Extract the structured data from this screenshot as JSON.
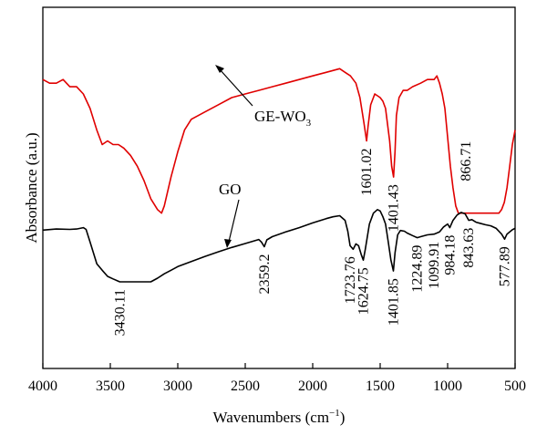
{
  "chart_data": {
    "type": "line",
    "title": "",
    "xlabel": "Wavenumbers (cm",
    "xlabel_sup": "−1",
    "xlabel_tail": ")",
    "ylabel": "Absorbance (a.u.)",
    "xlim": [
      4000,
      500
    ],
    "x_reversed": true,
    "y_ticks_shown": false,
    "grid": false,
    "x_tick_labels": [
      "4000",
      "3500",
      "3000",
      "2500",
      "2000",
      "1500",
      "1000",
      "500"
    ],
    "series": [
      {
        "name": "GE-WO",
        "name_sub": "3",
        "color": "#e00000",
        "x": [
          4000,
          3950,
          3900,
          3850,
          3800,
          3750,
          3700,
          3650,
          3600,
          3560,
          3520,
          3480,
          3440,
          3400,
          3350,
          3300,
          3250,
          3200,
          3150,
          3120,
          3100,
          3050,
          3000,
          2950,
          2900,
          2850,
          2800,
          2700,
          2600,
          2500,
          2400,
          2300,
          2200,
          2100,
          2000,
          1900,
          1850,
          1800,
          1760,
          1720,
          1700,
          1680,
          1650,
          1620,
          1601,
          1590,
          1570,
          1540,
          1500,
          1480,
          1460,
          1430,
          1415,
          1401,
          1390,
          1380,
          1360,
          1330,
          1300,
          1260,
          1200,
          1150,
          1100,
          1080,
          1060,
          1040,
          1020,
          1000,
          980,
          960,
          940,
          920,
          900,
          880,
          866,
          850,
          820,
          780,
          740,
          700,
          660,
          620,
          600,
          580,
          560,
          540,
          520,
          500
        ],
        "y": [
          0.8,
          0.79,
          0.79,
          0.8,
          0.78,
          0.78,
          0.76,
          0.72,
          0.66,
          0.62,
          0.63,
          0.62,
          0.62,
          0.61,
          0.59,
          0.56,
          0.52,
          0.47,
          0.44,
          0.43,
          0.45,
          0.53,
          0.6,
          0.66,
          0.69,
          0.7,
          0.71,
          0.73,
          0.75,
          0.76,
          0.77,
          0.78,
          0.79,
          0.8,
          0.81,
          0.82,
          0.825,
          0.83,
          0.82,
          0.81,
          0.8,
          0.79,
          0.75,
          0.68,
          0.63,
          0.67,
          0.73,
          0.76,
          0.75,
          0.74,
          0.72,
          0.63,
          0.56,
          0.53,
          0.6,
          0.7,
          0.75,
          0.77,
          0.77,
          0.78,
          0.79,
          0.8,
          0.8,
          0.81,
          0.79,
          0.76,
          0.72,
          0.64,
          0.56,
          0.5,
          0.45,
          0.43,
          0.43,
          0.43,
          0.43,
          0.43,
          0.43,
          0.43,
          0.43,
          0.43,
          0.43,
          0.43,
          0.44,
          0.46,
          0.5,
          0.56,
          0.62,
          0.66
        ]
      },
      {
        "name": "GO",
        "color": "#000000",
        "x": [
          4000,
          3900,
          3800,
          3750,
          3700,
          3680,
          3650,
          3600,
          3560,
          3520,
          3480,
          3430,
          3400,
          3350,
          3300,
          3200,
          3150,
          3100,
          3050,
          3000,
          2900,
          2800,
          2700,
          2600,
          2500,
          2400,
          2380,
          2359,
          2340,
          2300,
          2200,
          2100,
          2000,
          1900,
          1850,
          1800,
          1760,
          1740,
          1723,
          1700,
          1680,
          1660,
          1640,
          1625,
          1610,
          1580,
          1550,
          1520,
          1500,
          1480,
          1460,
          1440,
          1420,
          1402,
          1390,
          1370,
          1350,
          1320,
          1300,
          1260,
          1225,
          1200,
          1150,
          1100,
          1060,
          1030,
          1000,
          984,
          960,
          930,
          900,
          870,
          843,
          820,
          790,
          760,
          720,
          680,
          640,
          600,
          578,
          560,
          540,
          520,
          500
        ],
        "y": [
          0.383,
          0.386,
          0.385,
          0.386,
          0.39,
          0.385,
          0.35,
          0.29,
          0.272,
          0.255,
          0.248,
          0.24,
          0.24,
          0.24,
          0.24,
          0.24,
          0.25,
          0.262,
          0.272,
          0.282,
          0.296,
          0.31,
          0.323,
          0.335,
          0.346,
          0.357,
          0.35,
          0.337,
          0.356,
          0.365,
          0.378,
          0.39,
          0.403,
          0.415,
          0.42,
          0.423,
          0.41,
          0.38,
          0.34,
          0.33,
          0.345,
          0.34,
          0.315,
          0.3,
          0.33,
          0.4,
          0.43,
          0.44,
          0.436,
          0.42,
          0.4,
          0.35,
          0.3,
          0.27,
          0.32,
          0.37,
          0.382,
          0.38,
          0.375,
          0.368,
          0.362,
          0.365,
          0.37,
          0.372,
          0.378,
          0.392,
          0.4,
          0.39,
          0.41,
          0.425,
          0.432,
          0.428,
          0.41,
          0.412,
          0.405,
          0.402,
          0.398,
          0.395,
          0.388,
          0.372,
          0.358,
          0.372,
          0.378,
          0.384,
          0.388
        ]
      }
    ],
    "peak_labels": [
      {
        "text": "3430.11",
        "x": 3430,
        "y": 0.24
      },
      {
        "text": "2359.2",
        "x": 2359,
        "y": 0.337
      },
      {
        "text": "1723.76",
        "x": 1723,
        "y": 0.33
      },
      {
        "text": "1624.75",
        "x": 1625,
        "y": 0.3
      },
      {
        "text": "1401.85",
        "x": 1402,
        "y": 0.27
      },
      {
        "text": "1224.89",
        "x": 1225,
        "y": 0.362
      },
      {
        "text": "1099.91",
        "x": 1100,
        "y": 0.372
      },
      {
        "text": "984.18",
        "x": 984,
        "y": 0.39
      },
      {
        "text": "843.63",
        "x": 843,
        "y": 0.41
      },
      {
        "text": "577.89",
        "x": 578,
        "y": 0.358
      },
      {
        "text": "1601.02",
        "x": 1601,
        "y": 0.63
      },
      {
        "text": "1401.43",
        "x": 1401,
        "y": 0.53
      },
      {
        "text": "866.71",
        "x": 866,
        "y": 0.65
      }
    ]
  }
}
